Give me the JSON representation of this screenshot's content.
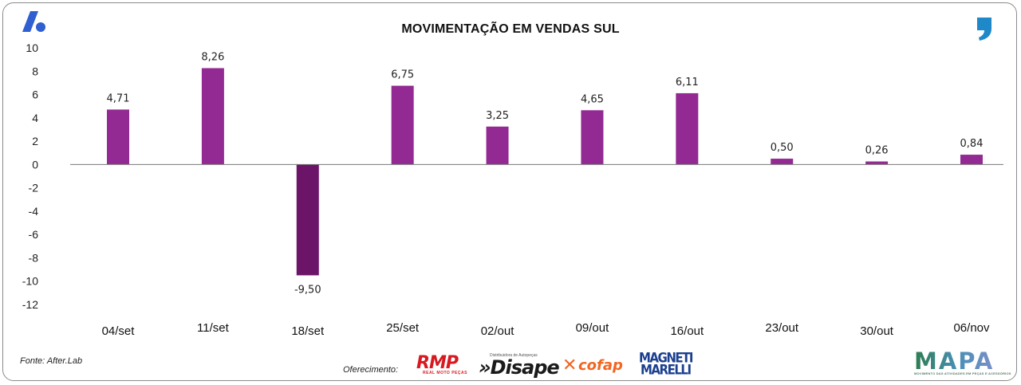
{
  "title": "MOVIMENTAÇÃO EM VENDAS SUL",
  "footer": {
    "source": "Fonte: After.Lab",
    "offered_by": "Oferecimento:"
  },
  "sponsors": {
    "rmp": {
      "name": "RMP",
      "tagline": "REAL MOTO PEÇAS"
    },
    "disape": {
      "name": "»Disape",
      "tagline": "Distribuidora de Autopeças"
    },
    "cofap": {
      "name": "cofap"
    },
    "magneti_marelli": {
      "line1": "MAGNETI",
      "line2": "MARELLI"
    },
    "mapa": {
      "name": "MAPA",
      "tagline": "MOVIMENTO DAS ATIVIDADES EM PEÇAS E ACESSÓRIOS"
    }
  },
  "colors": {
    "positive_bar": "#932a93",
    "negative_bar": "#6b1468",
    "axis": "#777777",
    "text": "#111111"
  },
  "icons": [
    "brand-a-icon",
    "quote-mark-icon"
  ],
  "chart_data": {
    "type": "bar",
    "title": "MOVIMENTAÇÃO EM VENDAS SUL",
    "categories": [
      "04/set",
      "11/set",
      "18/set",
      "25/set",
      "02/out",
      "09/out",
      "16/out",
      "23/out",
      "30/out",
      "06/nov"
    ],
    "values": [
      4.71,
      8.26,
      -9.5,
      6.75,
      3.25,
      4.65,
      6.11,
      0.5,
      0.26,
      0.84
    ],
    "data_labels": [
      "4,71",
      "8,26",
      "-9,50",
      "6,75",
      "3,25",
      "4,65",
      "6,11",
      "0,50",
      "0,26",
      "0,84"
    ],
    "yticks": [
      10,
      8,
      6,
      4,
      2,
      0,
      -2,
      -4,
      -6,
      -8,
      -10,
      -12
    ],
    "ylim": [
      -12,
      10
    ],
    "grid": false,
    "legend": "none"
  }
}
